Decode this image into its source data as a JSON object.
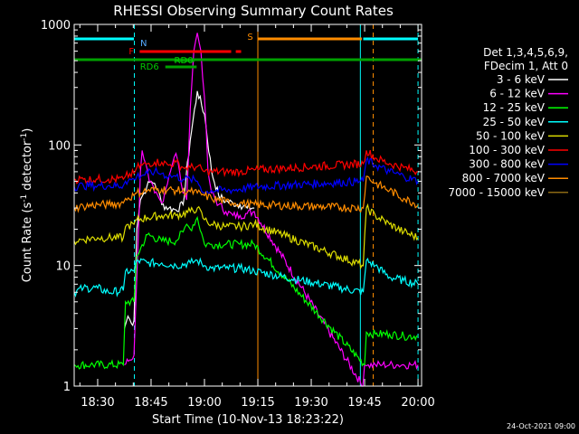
{
  "chart_data": {
    "type": "line",
    "title": "RHESSI Observing Summary Count Rates",
    "xlabel": "Start Time (10-Nov-13 18:23:22)",
    "ylabel_main": "Count Rate (s",
    "ylabel_sup1": "-1",
    "ylabel_mid": " detector",
    "ylabel_sup2": "-1",
    "ylabel_end": ")",
    "x_unit": "minutes after 18:00 UT",
    "xlim": [
      23.4,
      121.0
    ],
    "ylim": [
      1,
      1000
    ],
    "y_scale": "log",
    "x_ticks": [
      {
        "value": 30,
        "label": "18:30"
      },
      {
        "value": 45,
        "label": "18:45"
      },
      {
        "value": 60,
        "label": "19:00"
      },
      {
        "value": 75,
        "label": "19:15"
      },
      {
        "value": 90,
        "label": "19:30"
      },
      {
        "value": 105,
        "label": "19:45"
      },
      {
        "value": 120,
        "label": "20:00"
      }
    ],
    "y_ticks": [
      {
        "value": 1,
        "label": "1"
      },
      {
        "value": 10,
        "label": "10"
      },
      {
        "value": 100,
        "label": "100"
      },
      {
        "value": 1000,
        "label": "1000"
      }
    ],
    "legend_header": [
      "Det 1,3,4,5,6,9,",
      "FDecim 1, Att 0"
    ],
    "legend_placement": "right",
    "series": [
      {
        "name": "3 - 6 keV",
        "color": "#ffffff",
        "x": [
          37.5,
          38.5,
          39.5,
          40.2,
          41,
          42,
          43,
          43.8,
          45,
          46,
          47,
          48,
          50,
          52,
          54,
          56,
          58,
          60,
          62,
          64,
          66,
          68,
          70,
          72,
          74
        ],
        "y": [
          3.0,
          3.8,
          3.3,
          3.5,
          20,
          35,
          40,
          45,
          50,
          48,
          42,
          32,
          30,
          29,
          32,
          110,
          280,
          180,
          60,
          38,
          34,
          33,
          32,
          30,
          30
        ]
      },
      {
        "name": "6 - 12 keV",
        "color": "#ff00ff",
        "x": [
          37.5,
          40.2,
          41,
          42,
          42.5,
          43.5,
          44.5,
          46,
          48,
          50,
          51,
          52,
          53,
          54,
          55,
          56,
          57,
          58,
          59,
          60,
          61,
          62,
          64,
          66,
          68,
          70,
          72,
          74,
          104.5,
          105,
          106,
          108,
          110,
          112,
          114,
          116,
          118,
          120
        ],
        "y": [
          1.5,
          1.8,
          8,
          60,
          90,
          70,
          50,
          40,
          33,
          55,
          70,
          85,
          60,
          40,
          35,
          200,
          600,
          850,
          600,
          250,
          60,
          40,
          32,
          28,
          26,
          26,
          27,
          28,
          1,
          1.5,
          1.5,
          1.5,
          1.5,
          1.5,
          1.5,
          1.5,
          1.5,
          1.5
        ]
      },
      {
        "name": "12 - 25 keV",
        "color": "#00ff00",
        "x": [
          23.4,
          28,
          33,
          37.2,
          37.8,
          40.2,
          41,
          44,
          48,
          52,
          54,
          55,
          56,
          58,
          60,
          62,
          66,
          70,
          74,
          105,
          105.5,
          108,
          112,
          116,
          120
        ],
        "y": [
          1.5,
          1.5,
          1.5,
          1.5,
          5,
          5,
          12,
          18,
          16,
          16,
          19,
          22,
          20,
          25,
          15,
          15,
          15,
          15,
          15,
          1.5,
          2.8,
          2.7,
          2.7,
          2.6,
          2.6
        ]
      },
      {
        "name": "25 - 50 keV",
        "color": "#00ffff",
        "x": [
          23.4,
          26,
          30,
          33,
          37.2,
          37.8,
          40.2,
          41,
          44,
          48,
          52,
          56,
          58,
          60,
          62,
          66,
          70,
          74,
          104.6,
          105.5,
          108,
          112,
          116,
          120
        ],
        "y": [
          6,
          6.5,
          6.5,
          6,
          6.2,
          9,
          9,
          11,
          10.5,
          10.5,
          10,
          10.5,
          11,
          10,
          9.5,
          9.5,
          9.5,
          9,
          6,
          11,
          10,
          8,
          7.5,
          7
        ]
      },
      {
        "name": "50 - 100 keV",
        "color": "#dddd00",
        "x": [
          23.4,
          26,
          30,
          33,
          37.2,
          37.8,
          40.2,
          41,
          44,
          48,
          52,
          56,
          58,
          60,
          62,
          66,
          70,
          74,
          104.6,
          105.5,
          108,
          112,
          116,
          120
        ],
        "y": [
          16,
          16.5,
          17,
          17,
          17,
          21,
          22,
          24,
          25,
          26,
          26,
          28,
          30,
          24,
          22,
          21,
          21,
          22,
          10,
          30,
          26,
          22,
          19,
          17
        ]
      },
      {
        "name": "100 - 300 keV",
        "color": "#ff0000",
        "x": [
          23.4,
          26,
          30,
          33,
          37.2,
          37.8,
          40.2,
          41,
          44,
          46,
          48,
          50,
          52,
          54,
          56,
          58,
          60,
          62,
          66,
          70,
          74,
          104.6,
          105.5,
          108,
          112,
          116,
          120
        ],
        "y": [
          52,
          52,
          52,
          52,
          52,
          55,
          58,
          65,
          70,
          72,
          72,
          68,
          72,
          65,
          65,
          66,
          60,
          60,
          60,
          60,
          62,
          70,
          90,
          78,
          70,
          65,
          60
        ]
      },
      {
        "name": "300 - 800 keV",
        "color": "#0000ff",
        "x": [
          23.4,
          26,
          30,
          33,
          37.2,
          37.8,
          40.2,
          41,
          44,
          46,
          48,
          50,
          52,
          54,
          56,
          58,
          60,
          62,
          66,
          70,
          74,
          104.6,
          105.5,
          108,
          112,
          116,
          120
        ],
        "y": [
          45,
          46,
          46,
          46,
          46,
          50,
          52,
          55,
          58,
          60,
          58,
          55,
          55,
          52,
          52,
          50,
          40,
          42,
          42,
          43,
          45,
          50,
          75,
          68,
          60,
          55,
          50
        ]
      },
      {
        "name": "800 - 7000 keV",
        "color": "#ff8c00",
        "x": [
          23.4,
          26,
          30,
          33,
          37.2,
          37.8,
          40.2,
          41,
          44,
          48,
          52,
          56,
          58,
          60,
          62,
          66,
          70,
          74,
          104.6,
          105.5,
          108,
          112,
          116,
          120
        ],
        "y": [
          30,
          31,
          32,
          32,
          33,
          36,
          38,
          40,
          42,
          43,
          42,
          41,
          40,
          38,
          36,
          34,
          33,
          32,
          30,
          55,
          48,
          42,
          36,
          32
        ]
      },
      {
        "name": "7000 - 15000 keV",
        "color": "#8b6914",
        "x": [],
        "y": []
      }
    ],
    "flag_bars": [
      {
        "label": "N",
        "label_color": "#55aaff",
        "color": "#00ffff",
        "y_row": "top",
        "segments": [
          [
            23.4,
            40.2
          ],
          [
            104.6,
            120
          ]
        ]
      },
      {
        "label": "S",
        "label_color": "#ff8c00",
        "color": "#ff8c00",
        "y_row": "top",
        "segments": [
          [
            75.1,
            104.2
          ]
        ]
      },
      {
        "label": "F",
        "label_color": "#ff0000",
        "color": "#ff0000",
        "y_row": "F",
        "segments": [
          [
            41.8,
            67.5
          ],
          [
            68.8,
            70.3
          ]
        ]
      },
      {
        "label": "",
        "label_color": "#00a000",
        "color": "#00a000",
        "y_row": "base",
        "segments": [
          [
            23.4,
            121
          ]
        ]
      },
      {
        "label": "RD0",
        "label_color": "#00cc00",
        "color": "#00a000",
        "y_row": "RD0",
        "segments": [
          [
            51.5,
            57.2
          ]
        ]
      },
      {
        "label": "RD6",
        "label_color": "#00cc00",
        "color": "#00a000",
        "y_row": "RD6",
        "segments": [
          [
            49.0,
            57.8
          ]
        ]
      }
    ],
    "vlines": [
      {
        "x": 40.3,
        "color": "#00ffff",
        "dash": true
      },
      {
        "x": 75.0,
        "color": "#ff8c00",
        "dash": false
      },
      {
        "x": 103.8,
        "color": "#00ffff",
        "dash": false
      },
      {
        "x": 107.4,
        "color": "#ff8c00",
        "dash": true
      },
      {
        "x": 120.0,
        "color": "#00ffff",
        "dash": true
      }
    ],
    "footer_date": "24-Oct-2021 09:00"
  }
}
